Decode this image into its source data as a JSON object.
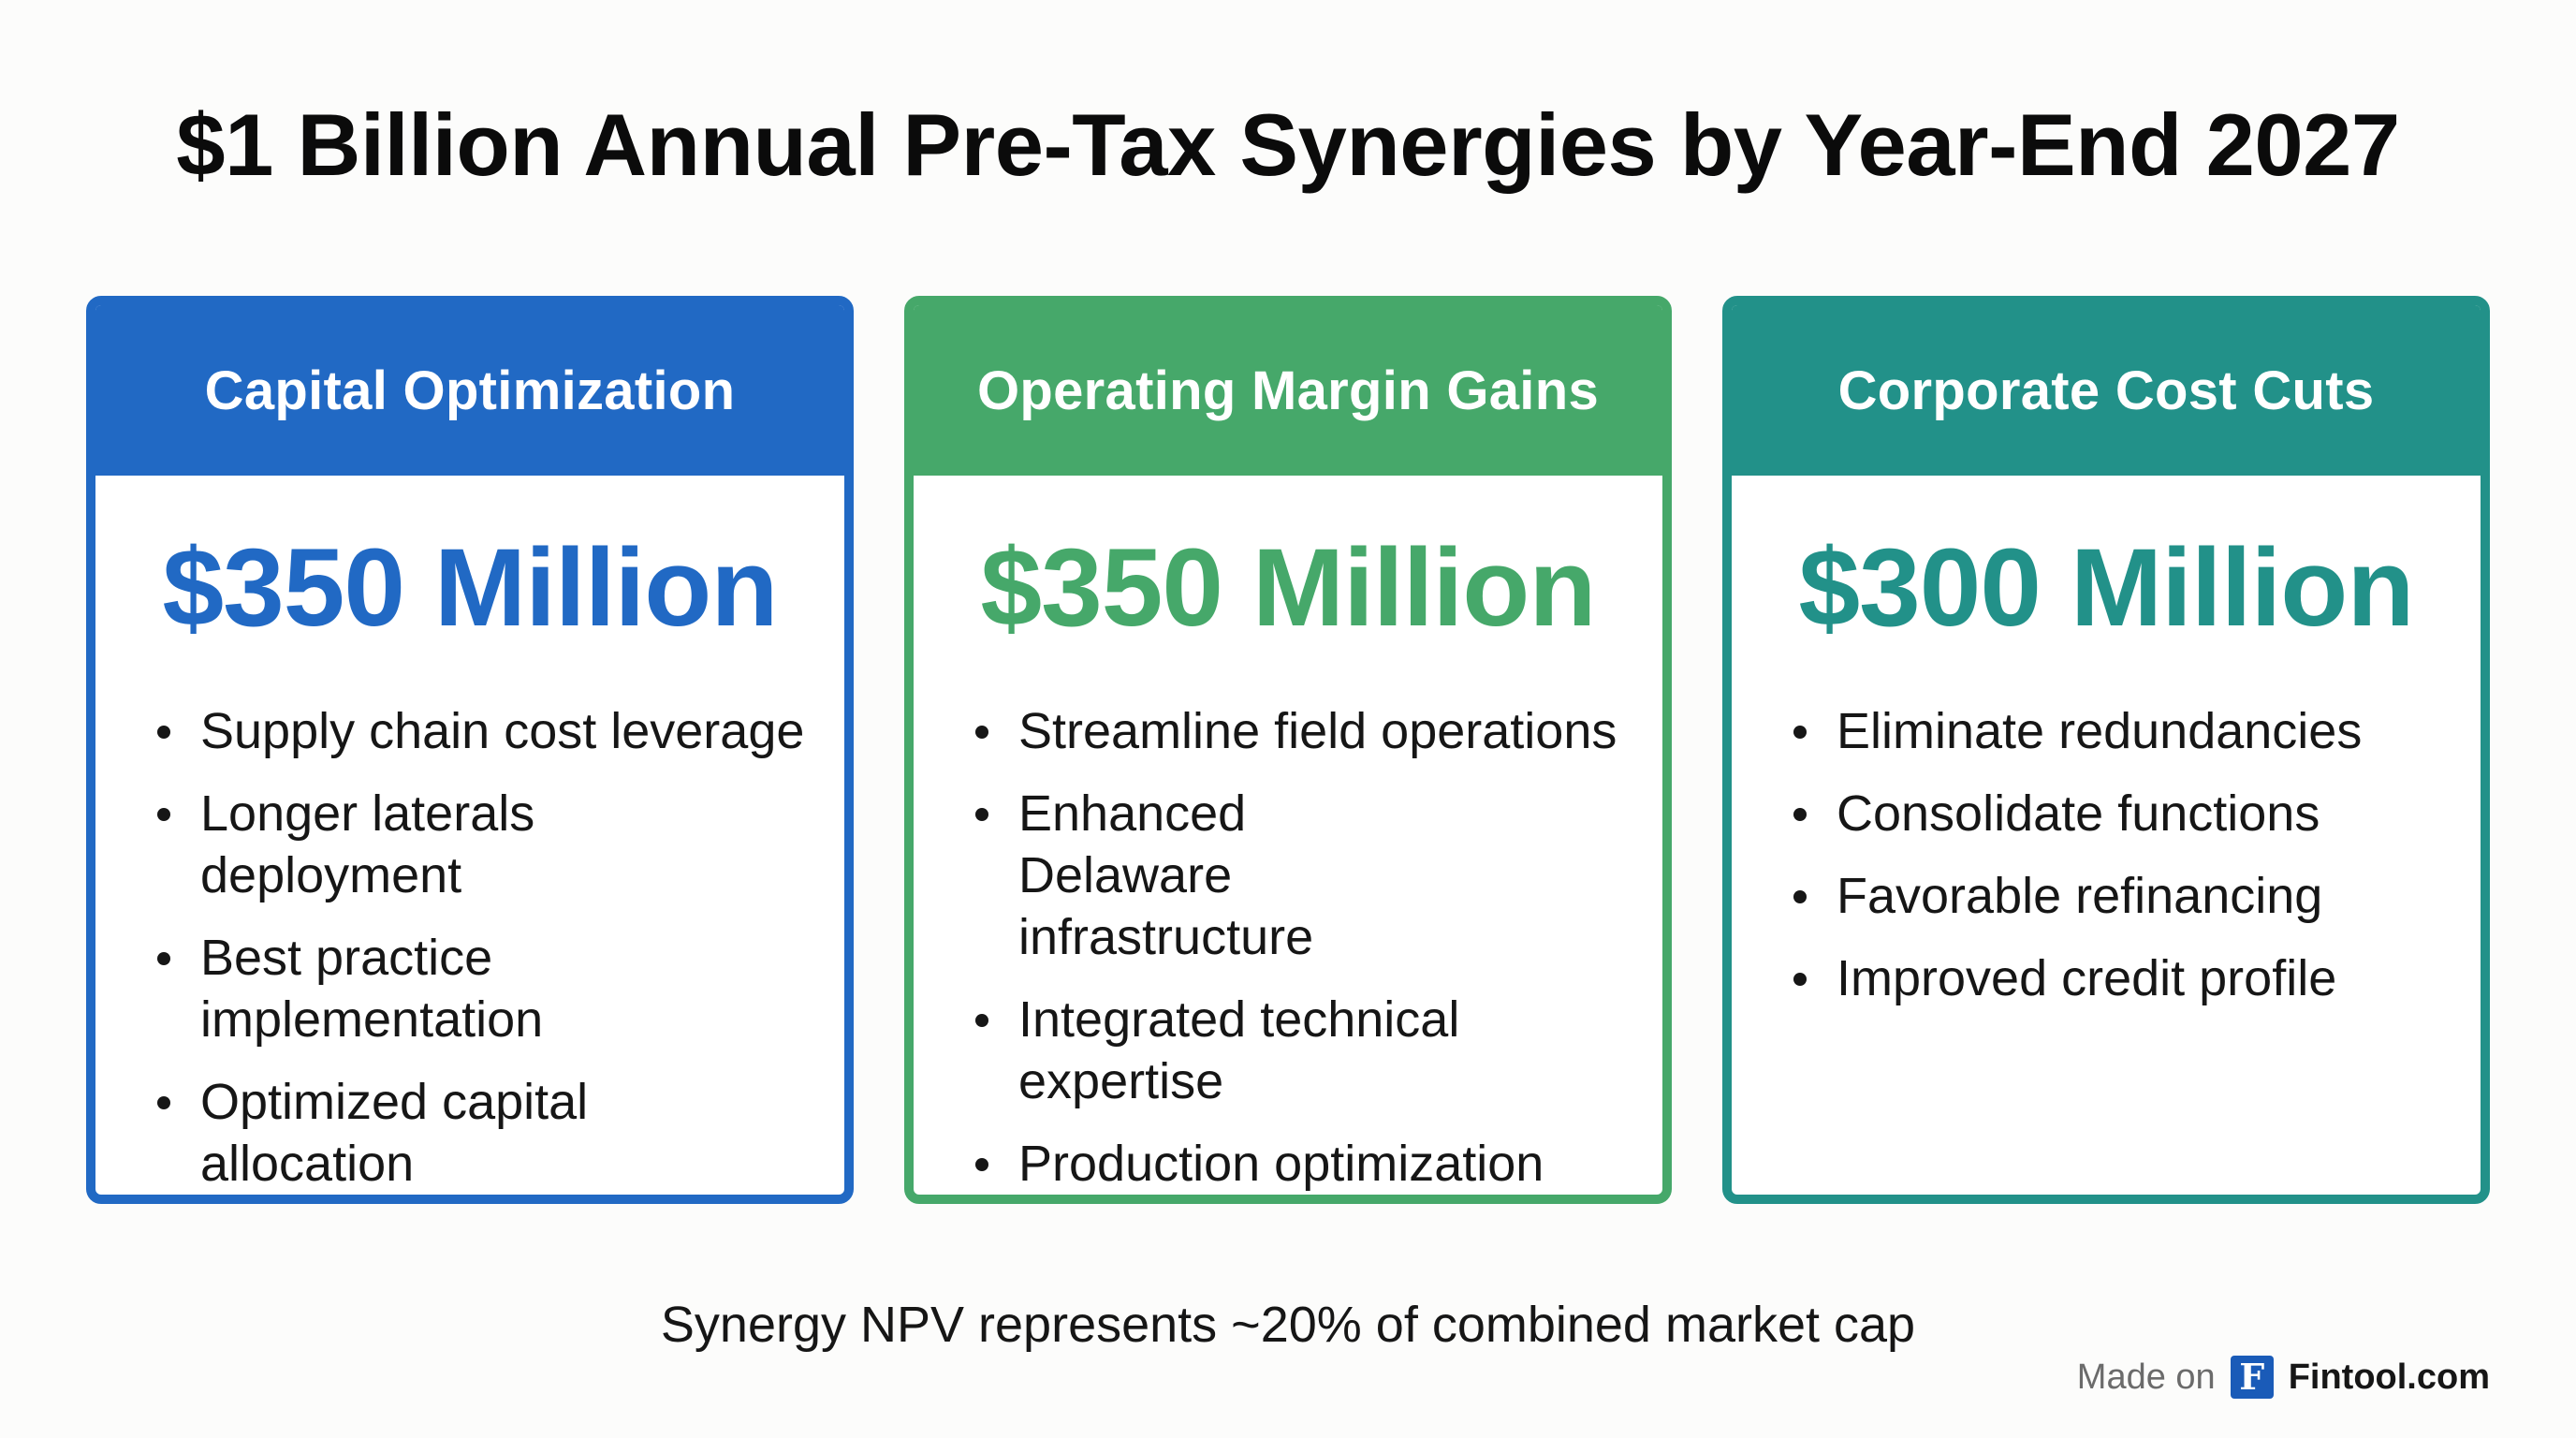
{
  "title": "$1 Billion Annual Pre-Tax Synergies by Year-End 2027",
  "cards": [
    {
      "heading": "Capital Optimization",
      "amount": "$350 Million",
      "color": "#2169c4",
      "items": [
        "Supply chain cost leverage",
        "Longer laterals deployment",
        "Best practice implementation",
        "Optimized capital allocation"
      ]
    },
    {
      "heading": "Operating Margin Gains",
      "amount": "$350 Million",
      "color": "#46a86a",
      "items": [
        "Streamline field operations",
        "Enhanced Delaware infrastructure",
        "Integrated technical expertise",
        "Production optimization"
      ]
    },
    {
      "heading": "Corporate Cost Cuts",
      "amount": "$300 Million",
      "color": "#229189",
      "items": [
        "Eliminate redundancies",
        "Consolidate functions",
        "Favorable refinancing",
        "Improved credit profile"
      ]
    }
  ],
  "footnote": "Synergy NPV represents ~20% of combined market cap",
  "branding": {
    "made_on": "Made on",
    "logo_letter": "F",
    "site": "Fintool.com"
  }
}
